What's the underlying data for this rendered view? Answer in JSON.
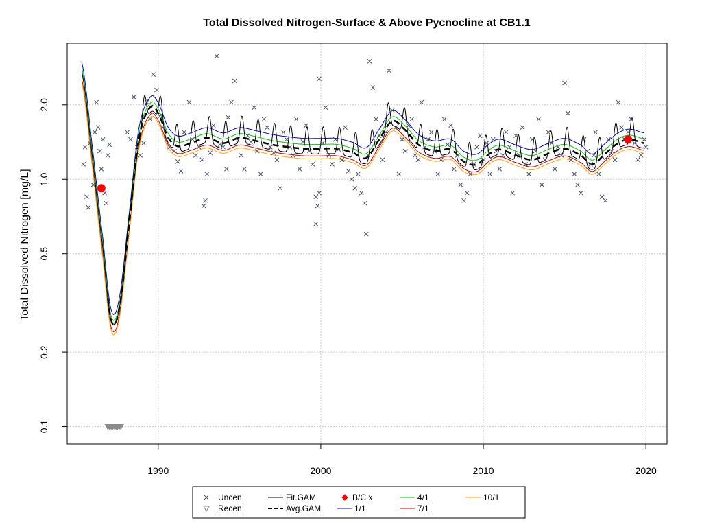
{
  "chart_data": {
    "type": "scatter",
    "title": "Total Dissolved Nitrogen-Surface & Above Pycnocline at CB1.1",
    "xlabel": "",
    "ylabel": "Total Dissolved Nitrogen [mg/L]",
    "xlim": [
      1984.4,
      2021.3
    ],
    "ylim": [
      0.085,
      3.55
    ],
    "log_y": true,
    "grid": true,
    "x_ticks": [
      1990,
      2000,
      2010,
      2020
    ],
    "x_tick_labels": [
      "1990",
      "2000",
      "2010",
      "2020"
    ],
    "y_ticks": [
      0.1,
      0.2,
      0.5,
      1.0,
      2.0
    ],
    "y_tick_labels": [
      "0.1",
      "0.2",
      "0.5",
      "1.0",
      "2.0"
    ],
    "colors": {
      "uncensored": "#4a5568",
      "recensored": "#8c8c8c",
      "fit_gam": "#000000",
      "avg_gam": "#000000",
      "bc": "#ff0000",
      "jan": "#0000cc",
      "apr": "#00cc00",
      "jul": "#cc0000",
      "oct": "#ffa500",
      "grid": "#c8c8c8"
    },
    "legend": {
      "placement": "bottom",
      "entries": [
        {
          "label": "Uncen.",
          "symbol": "x"
        },
        {
          "label": "Recen.",
          "symbol": "triangle-down"
        },
        {
          "label": "Fit.GAM",
          "symbol": "line"
        },
        {
          "label": "Avg.GAM",
          "symbol": "dashed-line"
        },
        {
          "label": "B/C x",
          "symbol": "diamond"
        },
        {
          "label": "1/1",
          "symbol": "line"
        },
        {
          "label": "4/1",
          "symbol": "line"
        },
        {
          "label": "7/1",
          "symbol": "line"
        },
        {
          "label": "10/1",
          "symbol": "line"
        }
      ]
    },
    "baseline_current_points": [
      {
        "x": 1986.5,
        "y": 0.92
      },
      {
        "x": 2018.9,
        "y": 1.45
      }
    ],
    "avg_gam_knots": [
      [
        1985.3,
        2.7
      ],
      [
        1986.0,
        1.15
      ],
      [
        1986.6,
        0.52
      ],
      [
        1987.1,
        0.27
      ],
      [
        1987.6,
        0.3
      ],
      [
        1988.2,
        0.65
      ],
      [
        1988.8,
        1.45
      ],
      [
        1989.5,
        1.95
      ],
      [
        1990.0,
        1.85
      ],
      [
        1990.6,
        1.48
      ],
      [
        1991.2,
        1.36
      ],
      [
        1992.0,
        1.4
      ],
      [
        1993.0,
        1.47
      ],
      [
        1994.0,
        1.4
      ],
      [
        1995.0,
        1.47
      ],
      [
        1996.0,
        1.43
      ],
      [
        1997.0,
        1.38
      ],
      [
        1998.0,
        1.35
      ],
      [
        1999.0,
        1.33
      ],
      [
        2000.0,
        1.33
      ],
      [
        2001.0,
        1.33
      ],
      [
        2002.0,
        1.28
      ],
      [
        2002.8,
        1.22
      ],
      [
        2003.6,
        1.45
      ],
      [
        2004.4,
        1.72
      ],
      [
        2005.2,
        1.58
      ],
      [
        2006.0,
        1.38
      ],
      [
        2007.0,
        1.3
      ],
      [
        2008.0,
        1.32
      ],
      [
        2008.8,
        1.18
      ],
      [
        2009.6,
        1.15
      ],
      [
        2010.4,
        1.27
      ],
      [
        2011.0,
        1.32
      ],
      [
        2012.0,
        1.25
      ],
      [
        2013.0,
        1.2
      ],
      [
        2014.0,
        1.27
      ],
      [
        2015.0,
        1.33
      ],
      [
        2016.0,
        1.25
      ],
      [
        2016.7,
        1.15
      ],
      [
        2017.5,
        1.27
      ],
      [
        2018.3,
        1.4
      ],
      [
        2019.0,
        1.45
      ],
      [
        2019.9,
        1.4
      ]
    ],
    "seasonal_offsets": {
      "1/1": 1.1,
      "4/1": 1.04,
      "7/1": 0.935,
      "10/1": 0.91
    },
    "fit_gam_seasonal_amplitude": 0.14,
    "uncensored_observations": [
      [
        1985.4,
        1.15
      ],
      [
        1985.5,
        1.35
      ],
      [
        1985.6,
        0.85
      ],
      [
        1985.7,
        0.77
      ],
      [
        1985.8,
        1.4
      ],
      [
        1986.0,
        0.95
      ],
      [
        1986.1,
        1.55
      ],
      [
        1986.2,
        2.05
      ],
      [
        1986.3,
        1.62
      ],
      [
        1986.4,
        1.3
      ],
      [
        1986.5,
        1.1
      ],
      [
        1986.6,
        1.45
      ],
      [
        1986.7,
        0.88
      ],
      [
        1986.8,
        0.8
      ],
      [
        1986.9,
        1.25
      ],
      [
        1987.0,
        1.38
      ],
      [
        1988.1,
        1.55
      ],
      [
        1988.3,
        1.45
      ],
      [
        1988.5,
        2.15
      ],
      [
        1988.7,
        1.35
      ],
      [
        1988.9,
        1.25
      ],
      [
        1989.1,
        1.4
      ],
      [
        1989.3,
        2.05
      ],
      [
        1989.5,
        1.75
      ],
      [
        1989.7,
        2.65
      ],
      [
        1989.9,
        2.3
      ],
      [
        1990.1,
        1.8
      ],
      [
        1990.3,
        1.62
      ],
      [
        1990.5,
        1.45
      ],
      [
        1990.7,
        1.35
      ],
      [
        1991.0,
        1.3
      ],
      [
        1991.2,
        1.18
      ],
      [
        1991.4,
        1.08
      ],
      [
        1991.6,
        1.55
      ],
      [
        1991.9,
        2.05
      ],
      [
        1992.1,
        1.45
      ],
      [
        1992.3,
        1.25
      ],
      [
        1992.5,
        1.35
      ],
      [
        1992.7,
        1.2
      ],
      [
        1992.8,
        0.78
      ],
      [
        1992.9,
        0.82
      ],
      [
        1993.0,
        1.05
      ],
      [
        1993.2,
        1.28
      ],
      [
        1993.4,
        1.65
      ],
      [
        1993.6,
        3.15
      ],
      [
        1993.8,
        1.38
      ],
      [
        1994.0,
        1.35
      ],
      [
        1994.2,
        1.1
      ],
      [
        1994.3,
        1.78
      ],
      [
        1994.5,
        2.05
      ],
      [
        1994.7,
        2.5
      ],
      [
        1994.9,
        1.45
      ],
      [
        1995.1,
        1.25
      ],
      [
        1995.3,
        1.1
      ],
      [
        1995.5,
        1.5
      ],
      [
        1995.7,
        1.42
      ],
      [
        1995.9,
        1.95
      ],
      [
        1996.1,
        1.3
      ],
      [
        1996.3,
        1.05
      ],
      [
        1996.5,
        1.75
      ],
      [
        1996.7,
        1.62
      ],
      [
        1996.9,
        1.35
      ],
      [
        1997.1,
        1.28
      ],
      [
        1997.3,
        1.2
      ],
      [
        1997.5,
        0.92
      ],
      [
        1997.7,
        1.55
      ],
      [
        1997.9,
        1.45
      ],
      [
        1998.1,
        1.35
      ],
      [
        1998.3,
        1.25
      ],
      [
        1998.5,
        1.75
      ],
      [
        1998.7,
        1.1
      ],
      [
        1998.9,
        1.42
      ],
      [
        1999.1,
        1.65
      ],
      [
        1999.3,
        1.3
      ],
      [
        1999.5,
        1.15
      ],
      [
        1999.7,
        0.85
      ],
      [
        1999.8,
        0.78
      ],
      [
        1999.9,
        0.88
      ],
      [
        1999.7,
        0.66
      ],
      [
        1999.9,
        2.55
      ],
      [
        2000.1,
        1.4
      ],
      [
        2000.3,
        1.95
      ],
      [
        2000.5,
        1.25
      ],
      [
        2000.7,
        1.15
      ],
      [
        2000.9,
        1.45
      ],
      [
        2001.1,
        1.32
      ],
      [
        2001.3,
        1.2
      ],
      [
        2001.5,
        1.62
      ],
      [
        2001.7,
        1.08
      ],
      [
        2001.9,
        1.0
      ],
      [
        2002.1,
        0.92
      ],
      [
        2002.3,
        1.05
      ],
      [
        2002.5,
        0.88
      ],
      [
        2002.7,
        0.8
      ],
      [
        2002.8,
        0.6
      ],
      [
        2002.9,
        1.25
      ],
      [
        2003.0,
        3.0
      ],
      [
        2003.2,
        2.35
      ],
      [
        2003.4,
        1.75
      ],
      [
        2003.6,
        1.5
      ],
      [
        2003.8,
        1.2
      ],
      [
        2004.0,
        1.55
      ],
      [
        2004.2,
        2.75
      ],
      [
        2004.4,
        1.9
      ],
      [
        2004.6,
        1.62
      ],
      [
        2004.8,
        1.05
      ],
      [
        2005.0,
        1.45
      ],
      [
        2005.2,
        1.3
      ],
      [
        2005.4,
        1.65
      ],
      [
        2005.6,
        1.75
      ],
      [
        2005.8,
        1.25
      ],
      [
        2006.0,
        1.2
      ],
      [
        2006.2,
        2.05
      ],
      [
        2006.4,
        1.35
      ],
      [
        2006.6,
        1.45
      ],
      [
        2006.8,
        1.55
      ],
      [
        2007.0,
        1.3
      ],
      [
        2007.2,
        1.05
      ],
      [
        2007.4,
        1.2
      ],
      [
        2007.6,
        1.75
      ],
      [
        2007.8,
        1.38
      ],
      [
        2008.0,
        1.65
      ],
      [
        2008.2,
        1.1
      ],
      [
        2008.4,
        1.25
      ],
      [
        2008.6,
        0.95
      ],
      [
        2008.8,
        0.82
      ],
      [
        2009.0,
        0.88
      ],
      [
        2009.2,
        1.05
      ],
      [
        2009.4,
        1.15
      ],
      [
        2009.6,
        1.35
      ],
      [
        2009.8,
        1.5
      ],
      [
        2010.0,
        1.2
      ],
      [
        2010.2,
        1.4
      ],
      [
        2010.4,
        1.05
      ],
      [
        2010.6,
        1.45
      ],
      [
        2010.8,
        1.3
      ],
      [
        2011.0,
        1.1
      ],
      [
        2011.2,
        1.25
      ],
      [
        2011.4,
        1.55
      ],
      [
        2011.6,
        1.35
      ],
      [
        2011.8,
        0.88
      ],
      [
        2012.0,
        1.5
      ],
      [
        2012.2,
        1.25
      ],
      [
        2012.4,
        1.62
      ],
      [
        2012.6,
        1.15
      ],
      [
        2012.8,
        1.05
      ],
      [
        2013.0,
        1.45
      ],
      [
        2013.2,
        1.3
      ],
      [
        2013.4,
        1.75
      ],
      [
        2013.6,
        0.95
      ],
      [
        2013.8,
        1.2
      ],
      [
        2014.0,
        1.55
      ],
      [
        2014.2,
        1.4
      ],
      [
        2014.4,
        1.1
      ],
      [
        2014.6,
        1.35
      ],
      [
        2014.8,
        1.25
      ],
      [
        2015.0,
        2.45
      ],
      [
        2015.2,
        1.85
      ],
      [
        2015.4,
        1.2
      ],
      [
        2015.6,
        1.05
      ],
      [
        2015.8,
        0.95
      ],
      [
        2016.0,
        0.88
      ],
      [
        2016.2,
        1.45
      ],
      [
        2016.4,
        1.3
      ],
      [
        2016.6,
        1.15
      ],
      [
        2016.8,
        1.25
      ],
      [
        2016.9,
        1.55
      ],
      [
        2017.1,
        1.05
      ],
      [
        2017.3,
        0.85
      ],
      [
        2017.5,
        0.82
      ],
      [
        2017.7,
        1.45
      ],
      [
        2017.9,
        1.3
      ],
      [
        2018.1,
        1.2
      ],
      [
        2018.3,
        2.05
      ],
      [
        2018.5,
        1.62
      ],
      [
        2018.7,
        1.45
      ],
      [
        2018.9,
        1.55
      ],
      [
        2019.1,
        1.75
      ],
      [
        2019.3,
        1.4
      ],
      [
        2019.5,
        1.2
      ],
      [
        2019.7,
        1.25
      ],
      [
        2019.9,
        1.45
      ],
      [
        2020.0,
        1.35
      ]
    ],
    "recensored_observations": [
      [
        1986.9,
        0.1
      ],
      [
        1987.0,
        0.1
      ],
      [
        1987.1,
        0.1
      ],
      [
        1987.2,
        0.1
      ],
      [
        1987.3,
        0.1
      ],
      [
        1987.4,
        0.1
      ],
      [
        1987.5,
        0.1
      ],
      [
        1987.6,
        0.1
      ],
      [
        1987.7,
        0.1
      ]
    ]
  }
}
